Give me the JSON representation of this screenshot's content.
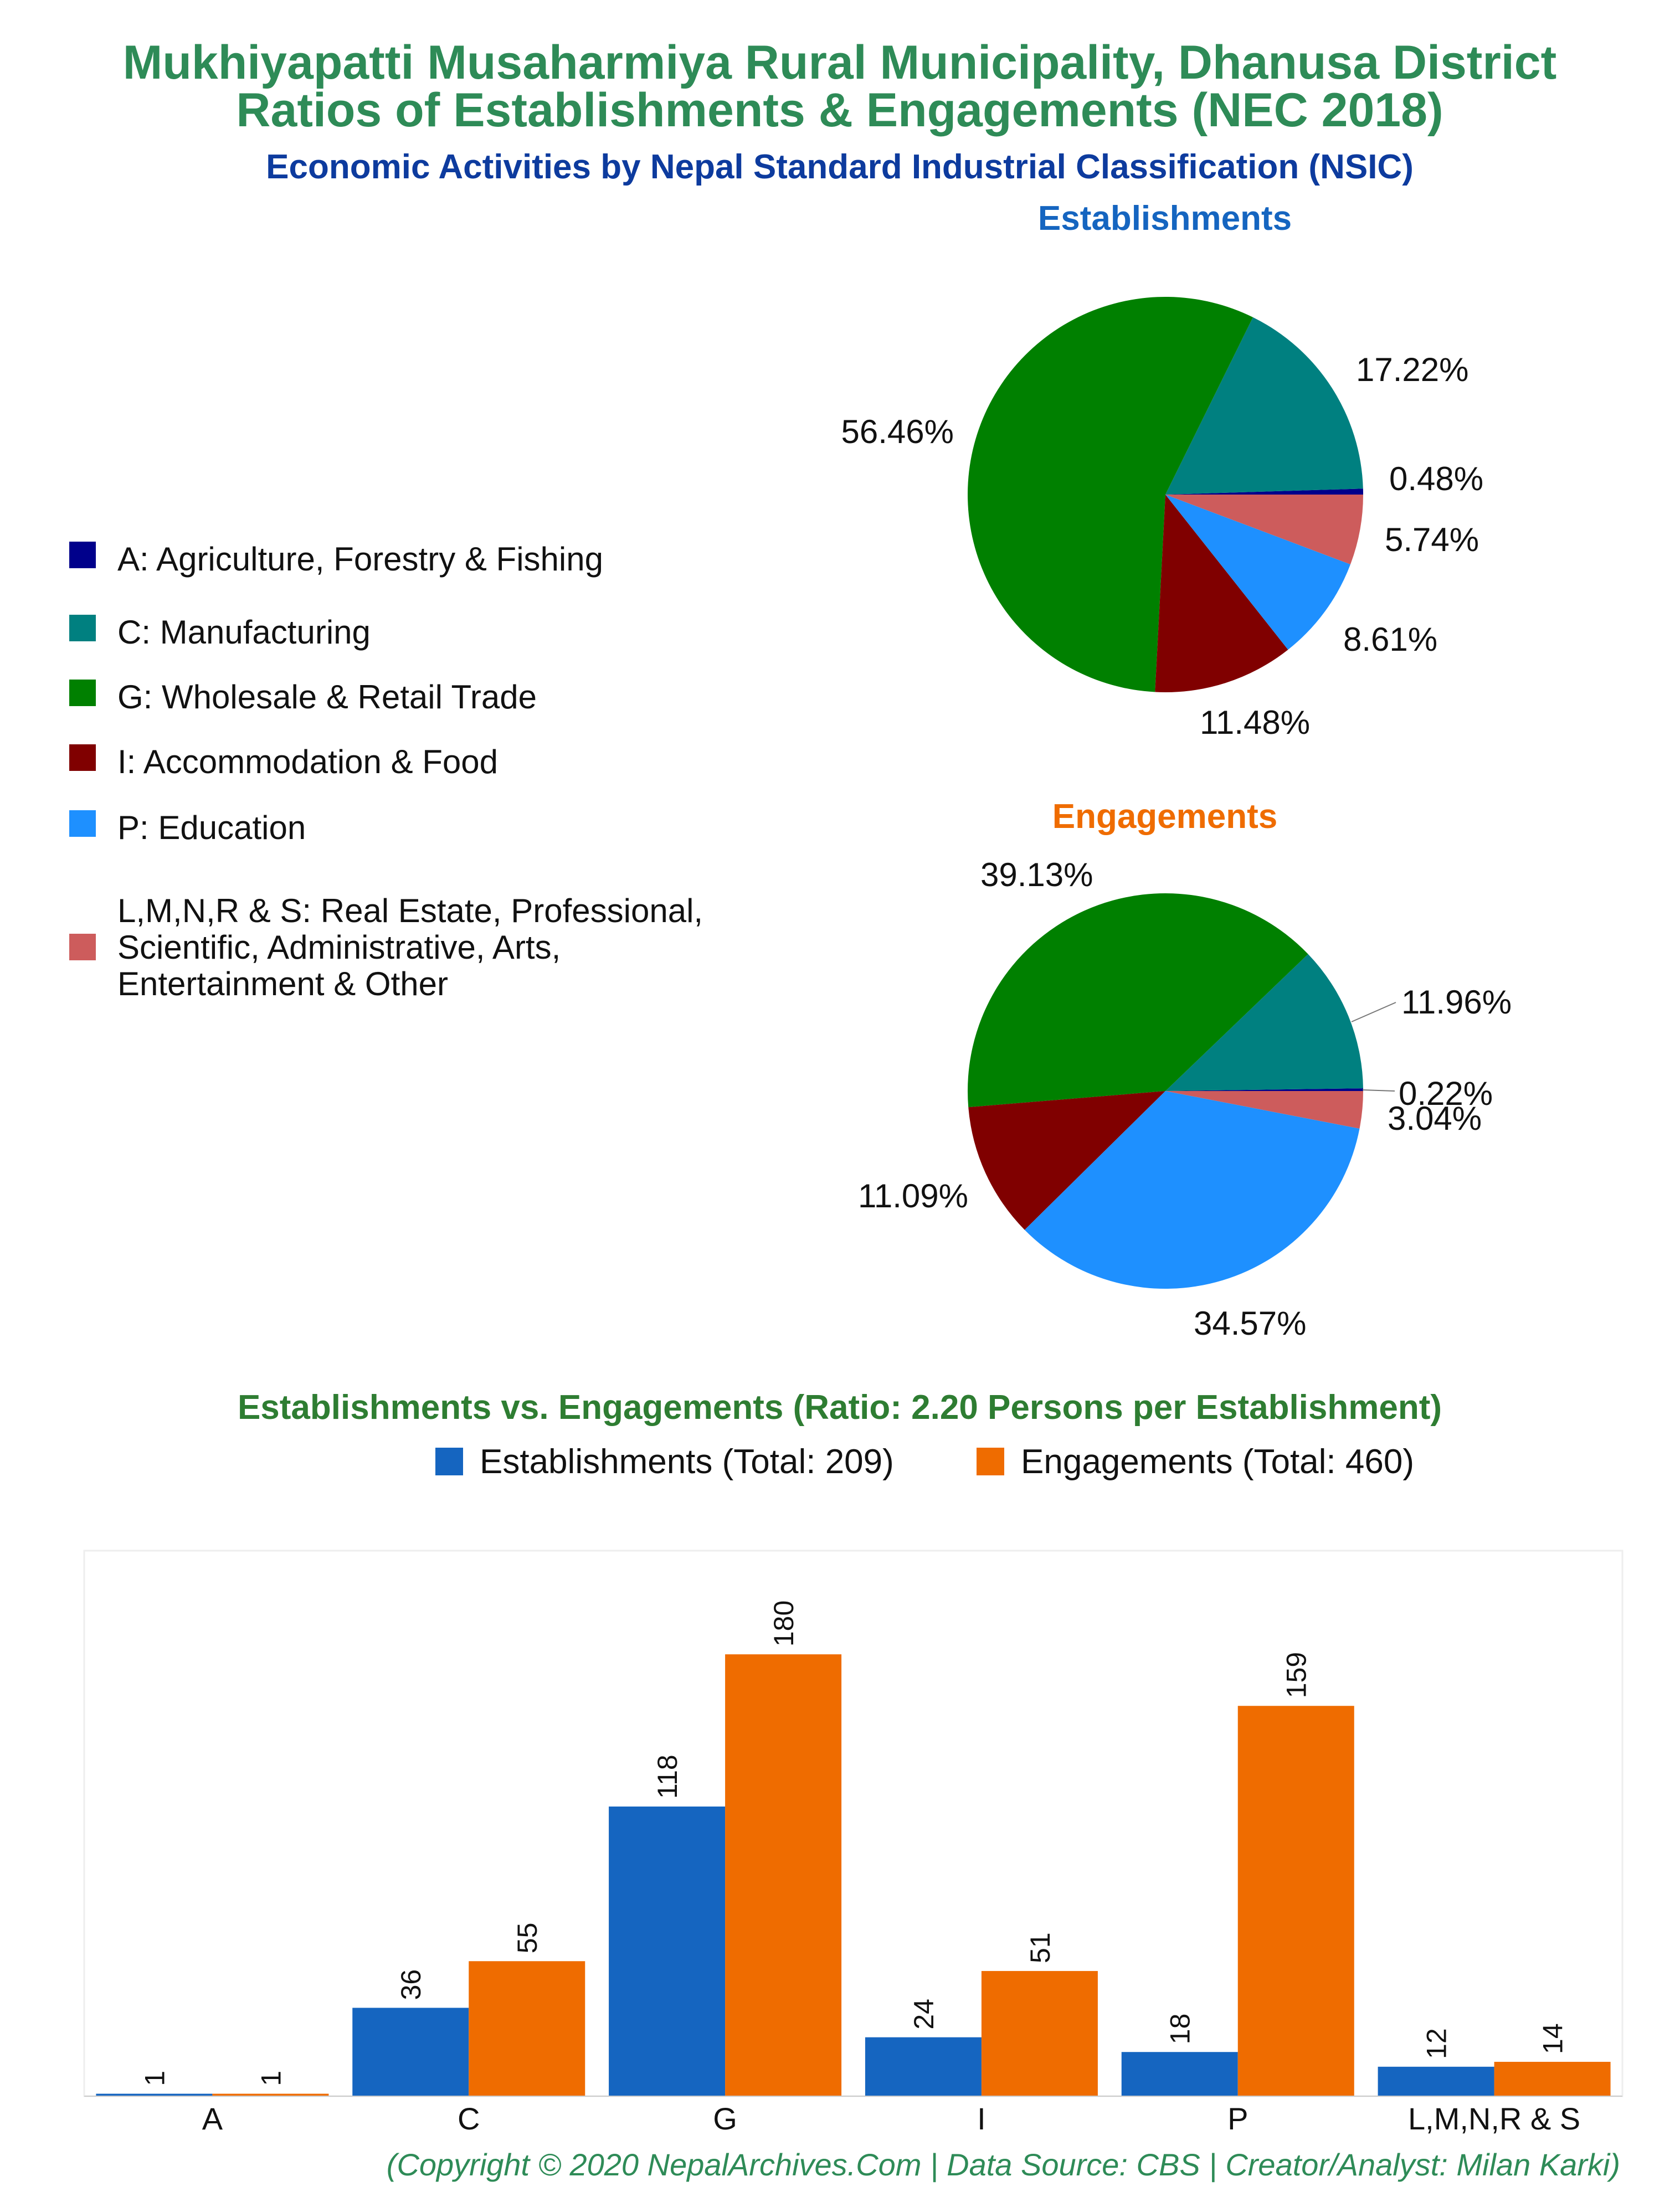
{
  "header": {
    "title_line1": "Mukhiyapatti Musaharmiya Rural Municipality, Dhanusa District",
    "title_line2": "Ratios of Establishments & Engagements (NEC 2018)",
    "subtitle": "Economic Activities by Nepal Standard Industrial Classification (NSIC)"
  },
  "legend": {
    "items": [
      {
        "label": "A: Agriculture, Forestry & Fishing",
        "color": "#00008B"
      },
      {
        "label": "C: Manufacturing",
        "color": "#008080"
      },
      {
        "label": "G: Wholesale & Retail Trade",
        "color": "#008000"
      },
      {
        "label": "I: Accommodation & Food",
        "color": "#800000"
      },
      {
        "label": "P: Education",
        "color": "#1E90FF"
      },
      {
        "label_lines": [
          "L,M,N,R & S: Real Estate, Professional,",
          "Scientific, Administrative, Arts,",
          "Entertainment & Other"
        ],
        "color": "#CD5C5C"
      }
    ]
  },
  "chart_data": [
    {
      "type": "pie",
      "title": "Establishments",
      "title_color": "#1565C0",
      "categories": [
        "A",
        "C",
        "G",
        "I",
        "P",
        "L,M,N,R & S"
      ],
      "values": [
        1,
        36,
        118,
        24,
        18,
        12
      ],
      "labels": [
        "0.48%",
        "17.22%",
        "56.46%",
        "11.48%",
        "8.61%",
        "5.74%"
      ],
      "colors": [
        "#00008B",
        "#008080",
        "#008000",
        "#800000",
        "#1E90FF",
        "#CD5C5C"
      ]
    },
    {
      "type": "pie",
      "title": "Engagements",
      "title_color": "#EF6C00",
      "categories": [
        "A",
        "C",
        "G",
        "I",
        "P",
        "L,M,N,R & S"
      ],
      "values": [
        1,
        55,
        180,
        51,
        159,
        14
      ],
      "labels": [
        "0.22%",
        "11.96%",
        "39.13%",
        "11.09%",
        "34.57%",
        "3.04%"
      ],
      "colors": [
        "#00008B",
        "#008080",
        "#008000",
        "#800000",
        "#1E90FF",
        "#CD5C5C"
      ]
    },
    {
      "type": "bar",
      "title": "Establishments vs. Engagements (Ratio: 2.20 Persons per Establishment)",
      "categories": [
        "A",
        "C",
        "G",
        "I",
        "P",
        "L,M,N,R & S"
      ],
      "series": [
        {
          "name": "Establishments (Total: 209)",
          "values": [
            1,
            36,
            118,
            24,
            18,
            12
          ],
          "color": "#1565C0"
        },
        {
          "name": "Engagements (Total: 460)",
          "values": [
            1,
            55,
            180,
            51,
            159,
            14
          ],
          "color": "#EF6C00"
        }
      ],
      "ylim": [
        0,
        200
      ],
      "grid": false,
      "legend": "top"
    }
  ],
  "footer": {
    "copyright": "(Copyright © 2020 NepalArchives.Com | Data Source: CBS | Creator/Analyst: Milan Karki)"
  }
}
